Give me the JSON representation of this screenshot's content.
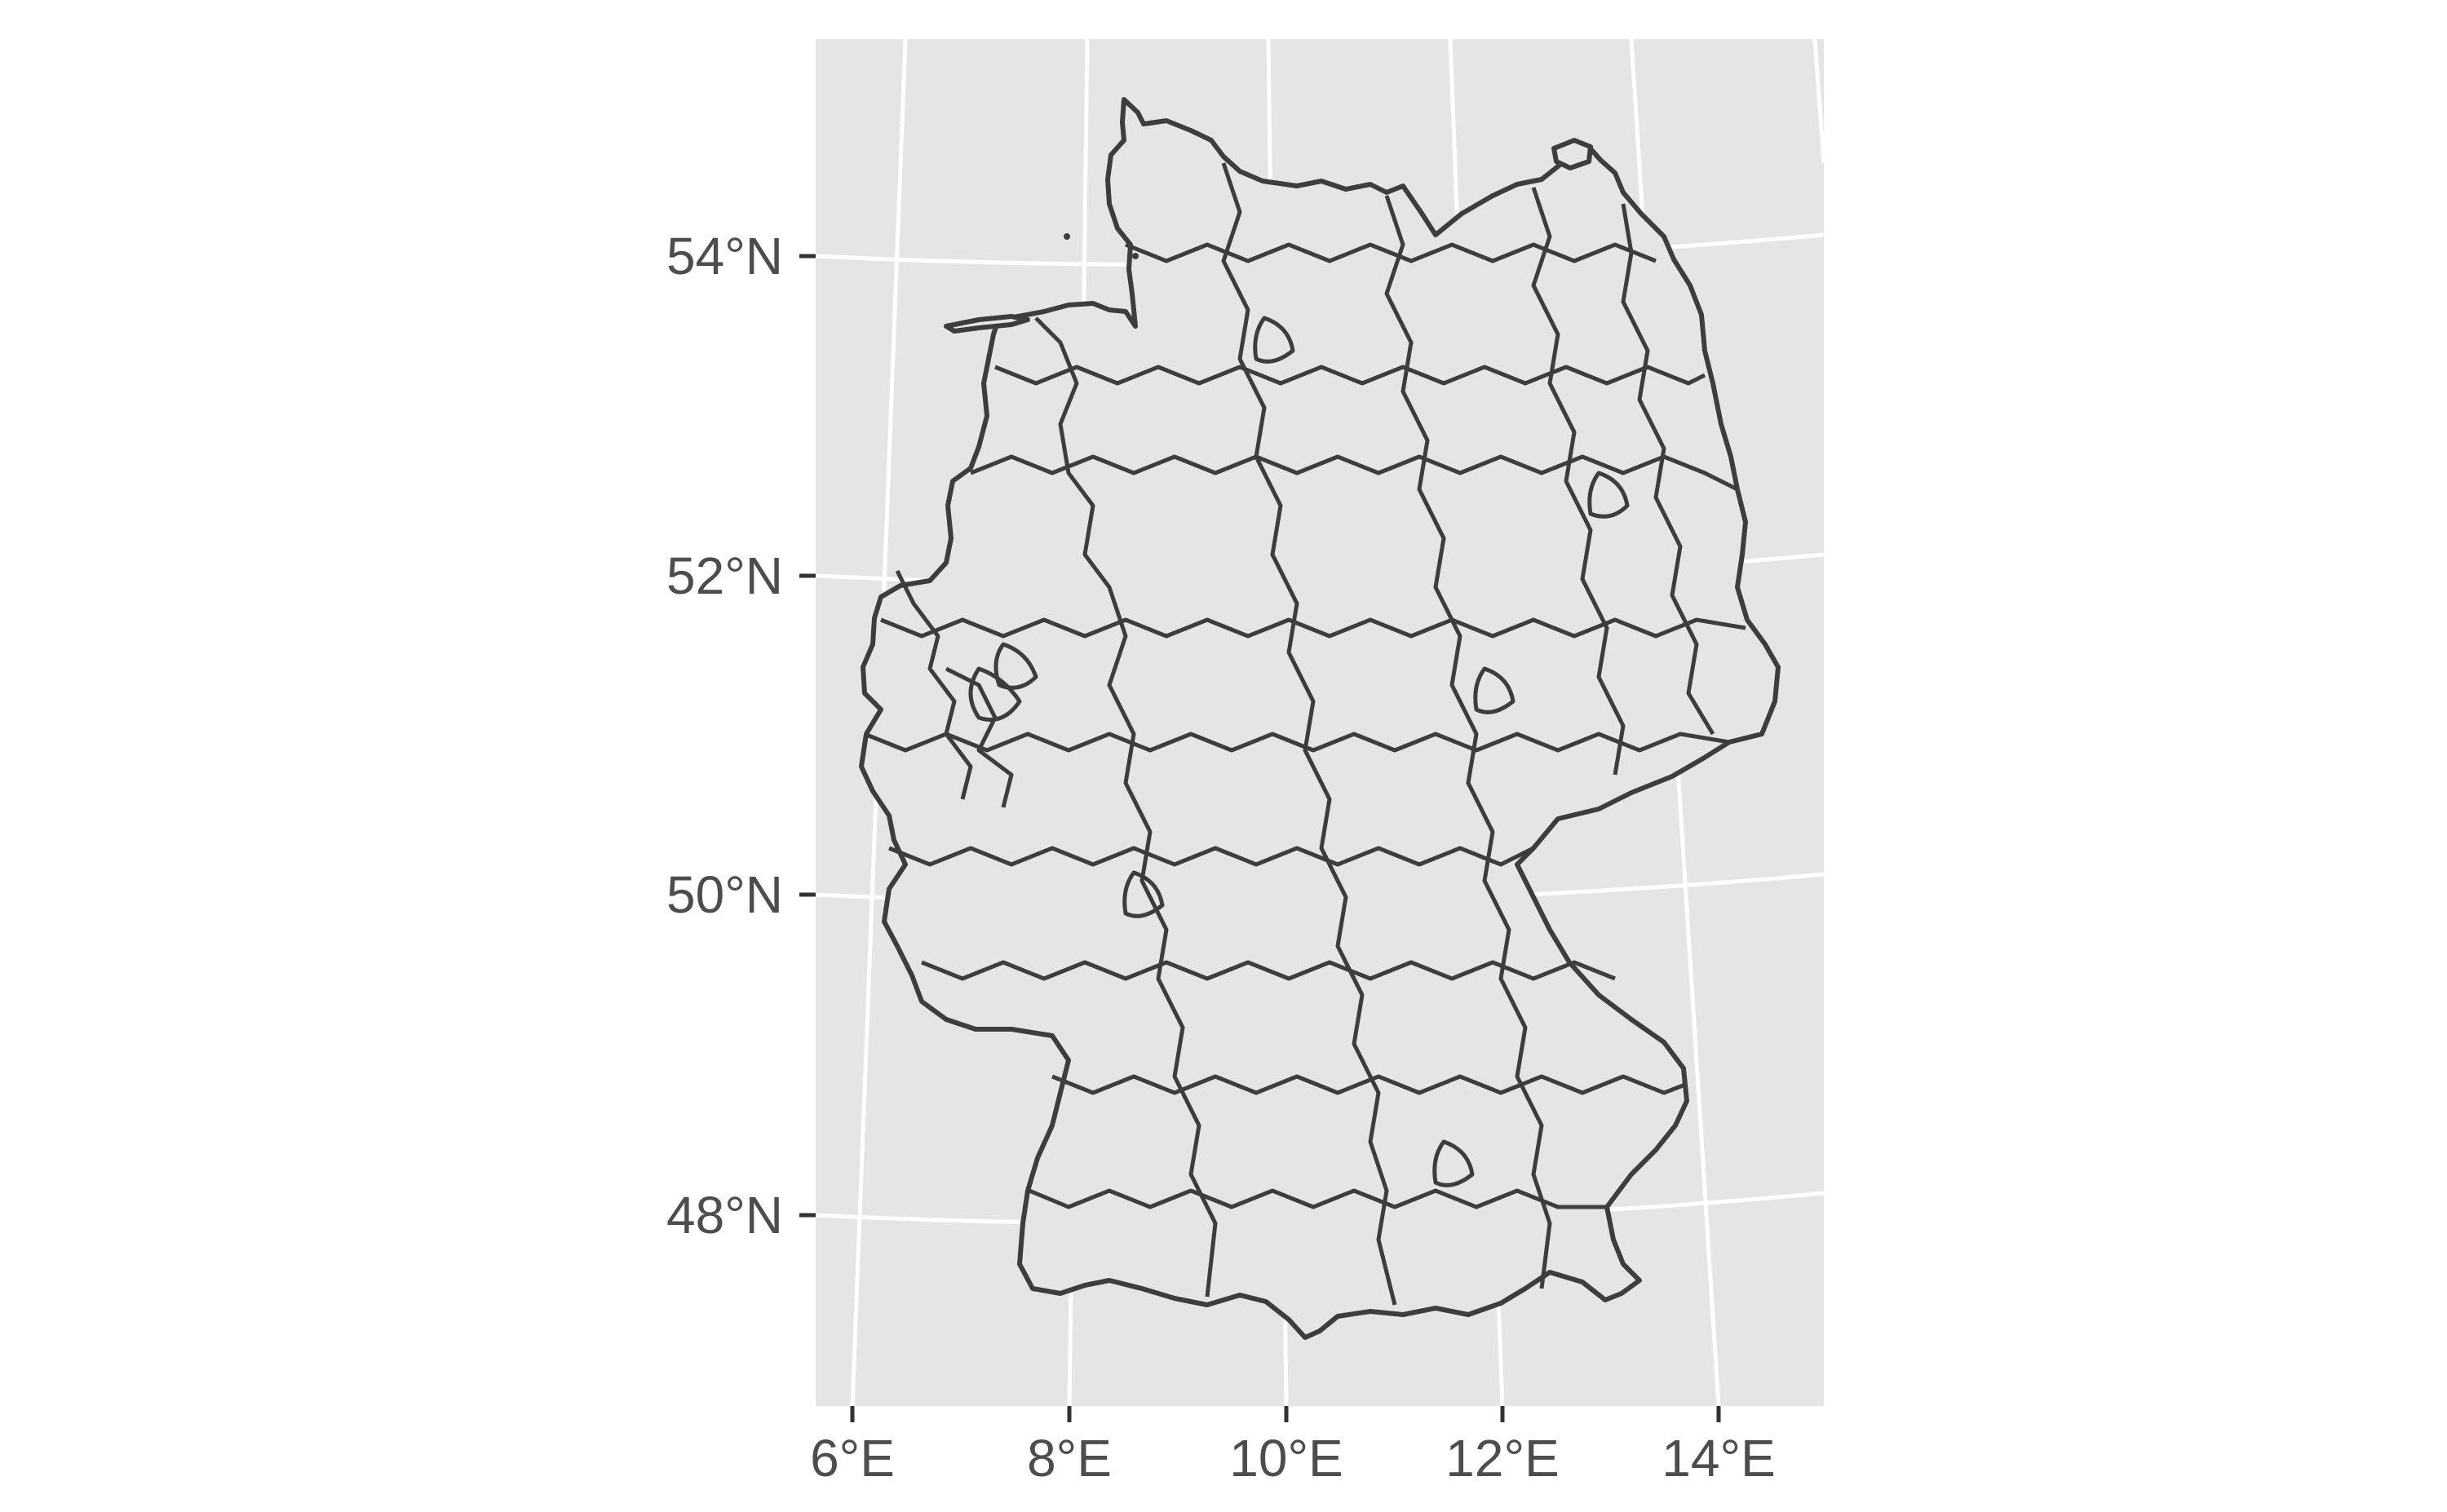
{
  "map": {
    "y_axis": {
      "ticks": [
        {
          "value": 54,
          "label": "54°N"
        },
        {
          "value": 52,
          "label": "52°N"
        },
        {
          "value": 50,
          "label": "50°N"
        },
        {
          "value": 48,
          "label": "48°N"
        }
      ]
    },
    "x_axis": {
      "ticks": [
        {
          "value": 6,
          "label": "6°E"
        },
        {
          "value": 8,
          "label": "8°E"
        },
        {
          "value": 10,
          "label": "10°E"
        },
        {
          "value": 12,
          "label": "12°E"
        },
        {
          "value": 14,
          "label": "14°E"
        }
      ]
    },
    "colors": {
      "panel_background": "#e5e5e5",
      "grid_lines": "#ffffff",
      "region_fill": "#e5e5e5",
      "region_border": "#3d3d3d",
      "axis_text": "#4d4d4d"
    },
    "layers": {
      "country_outline": "germany-outline",
      "region_borders": "district-boundaries"
    }
  }
}
